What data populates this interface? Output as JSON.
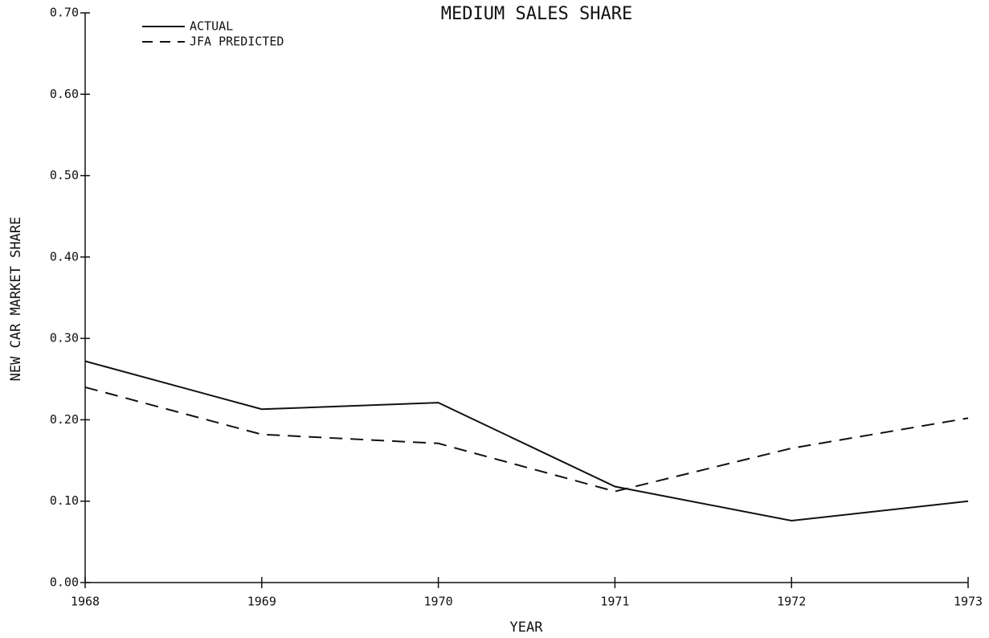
{
  "chart_data": {
    "type": "line",
    "title": "MEDIUM SALES SHARE",
    "xlabel": "YEAR",
    "ylabel": "NEW CAR MARKET SHARE",
    "x": [
      1968,
      1969,
      1970,
      1971,
      1972,
      1973
    ],
    "series": [
      {
        "name": "ACTUAL",
        "color": "#111111",
        "dash": "solid",
        "values": [
          0.272,
          0.213,
          0.221,
          0.118,
          0.076,
          0.1
        ]
      },
      {
        "name": "JFA PREDICTED",
        "color": "#111111",
        "dash": "dashed",
        "values": [
          0.24,
          0.182,
          0.171,
          0.112,
          0.165,
          0.202
        ]
      }
    ],
    "xlim": [
      1968,
      1973
    ],
    "xticks": [
      1968,
      1969,
      1970,
      1971,
      1972,
      1973
    ],
    "ylim": [
      0,
      0.7
    ],
    "yticks": [
      {
        "value": 0,
        "label": "0.00"
      },
      {
        "value": 0.1,
        "label": "0.10"
      },
      {
        "value": 0.2,
        "label": "0.20"
      },
      {
        "value": 0.3,
        "label": "0.30"
      },
      {
        "value": 0.4,
        "label": "0.40"
      },
      {
        "value": 0.5,
        "label": "0.50"
      },
      {
        "value": 0.6,
        "label": "0.60"
      },
      {
        "value": 0.7,
        "label": "0.70"
      }
    ],
    "grid": false,
    "legend": "upper left"
  }
}
